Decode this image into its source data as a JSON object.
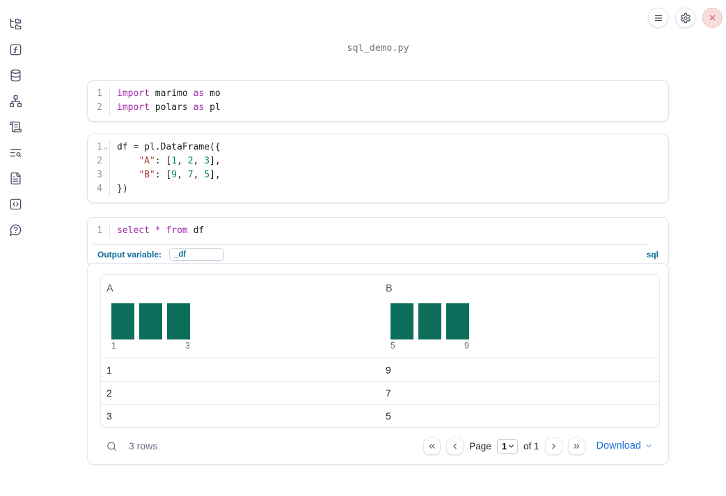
{
  "title": "sql_demo.py",
  "colors": {
    "keyword": "#a32ba8",
    "string": "#a93b33",
    "number": "#098658",
    "sql_accent_blue": "#0c6d9e",
    "histogram_bar": "#0e6e5c",
    "link_blue": "#1f6fdb",
    "close_red": "#c84b4b"
  },
  "sidebar": {
    "icons": [
      "file-tree",
      "function-square",
      "database",
      "dependency-graph",
      "scroll-text",
      "text-search",
      "file-document",
      "code-snippet",
      "help-bubble"
    ]
  },
  "cells": [
    {
      "lines": [
        {
          "num": "1",
          "tokens": [
            [
              "kw",
              "import"
            ],
            [
              "pl",
              " marimo "
            ],
            [
              "kw",
              "as"
            ],
            [
              "pl",
              " mo"
            ]
          ]
        },
        {
          "num": "2",
          "tokens": [
            [
              "kw",
              "import"
            ],
            [
              "pl",
              " polars "
            ],
            [
              "kw",
              "as"
            ],
            [
              "pl",
              " pl"
            ]
          ]
        }
      ]
    },
    {
      "lines": [
        {
          "num": "1",
          "fold": true,
          "tokens": [
            [
              "pl",
              "df = pl.DataFrame({"
            ]
          ]
        },
        {
          "num": "2",
          "tokens": [
            [
              "pl",
              "    "
            ],
            [
              "str",
              "\"A\""
            ],
            [
              "pl",
              ": ["
            ],
            [
              "num",
              "1"
            ],
            [
              "pl",
              ", "
            ],
            [
              "num",
              "2"
            ],
            [
              "pl",
              ", "
            ],
            [
              "num",
              "3"
            ],
            [
              "pl",
              "],"
            ]
          ]
        },
        {
          "num": "3",
          "tokens": [
            [
              "pl",
              "    "
            ],
            [
              "str",
              "\"B\""
            ],
            [
              "pl",
              ": ["
            ],
            [
              "num",
              "9"
            ],
            [
              "pl",
              ", "
            ],
            [
              "num",
              "7"
            ],
            [
              "pl",
              ", "
            ],
            [
              "num",
              "5"
            ],
            [
              "pl",
              "],"
            ]
          ]
        },
        {
          "num": "4",
          "tokens": [
            [
              "pl",
              "})"
            ]
          ]
        }
      ]
    },
    {
      "lines": [
        {
          "num": "1",
          "tokens": [
            [
              "kw",
              "select"
            ],
            [
              "pl",
              " "
            ],
            [
              "kw",
              "*"
            ],
            [
              "pl",
              " "
            ],
            [
              "kw",
              "from"
            ],
            [
              "pl",
              " df"
            ]
          ]
        }
      ],
      "footer": {
        "label": "Output variable:",
        "value": "_df",
        "language": "sql"
      }
    }
  ],
  "table": {
    "columns": [
      {
        "header": "A",
        "hist_bars": [
          1,
          1,
          1
        ],
        "hist_min": "1",
        "hist_max": "3"
      },
      {
        "header": "B",
        "hist_bars": [
          1,
          1,
          1
        ],
        "hist_min": "5",
        "hist_max": "9"
      }
    ],
    "rows": [
      [
        "1",
        "9"
      ],
      [
        "2",
        "7"
      ],
      [
        "3",
        "5"
      ]
    ],
    "footer": {
      "row_count": "3 rows",
      "page_label": "Page",
      "page_value": "1",
      "page_of": "of 1",
      "download_label": "Download"
    }
  }
}
